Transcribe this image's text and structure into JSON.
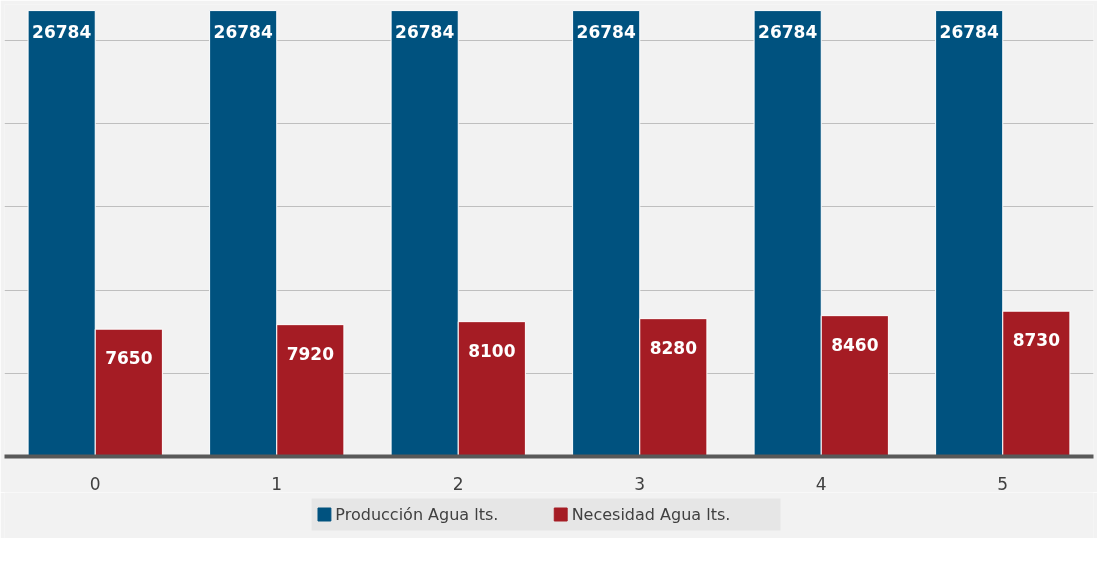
{
  "chart_data": {
    "type": "bar",
    "categories": [
      "0",
      "1",
      "2",
      "3",
      "4",
      "5"
    ],
    "series": [
      {
        "name": "Producción Agua lts.",
        "color": "#00527f",
        "values": [
          26784,
          26784,
          26784,
          26784,
          26784,
          26784
        ]
      },
      {
        "name": "Necesidad Agua lts.",
        "color": "#a51c24",
        "values": [
          7650,
          7920,
          8100,
          8280,
          8460,
          8730
        ]
      }
    ],
    "ylim": [
      0,
      27150
    ],
    "yticks": [
      {
        "value": 0,
        "label": null
      },
      {
        "value": 5000,
        "label": null
      },
      {
        "value": 10000,
        "label": null
      },
      {
        "value": 15000,
        "label": null
      },
      {
        "value": 20000,
        "label": null
      },
      {
        "value": 25000,
        "label": null
      }
    ],
    "grid": "y",
    "tick_labels": "x",
    "data_labels": true,
    "legend": "bottom"
  }
}
